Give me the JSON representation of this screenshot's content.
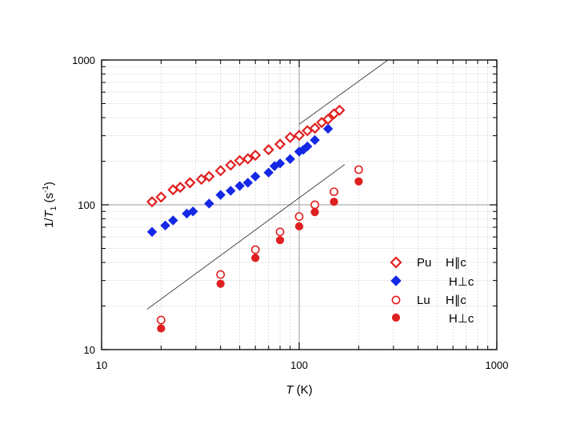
{
  "chart_data": {
    "type": "scatter",
    "xscale": "log",
    "yscale": "log",
    "xlim": [
      10,
      1000
    ],
    "ylim": [
      10,
      1000
    ],
    "x_ticks": [
      "10",
      "100",
      "1000"
    ],
    "y_ticks": [
      "10",
      "100",
      "1000"
    ],
    "xlabel": {
      "italic": "T",
      "rest": " (K)"
    },
    "ylabel": {
      "prefix": "1/",
      "italic": "T",
      "sub": "1",
      "rest": " (s",
      "sup": "-1",
      "end": ")"
    },
    "grid": true,
    "legend_position": "bottom-right",
    "series": [
      {
        "name": "Pu H∥c",
        "legend": {
          "compound": "Pu",
          "field": "H∥c"
        },
        "marker": "open-diamond",
        "color": "#e02020",
        "x": [
          18,
          20,
          23,
          25,
          28,
          32,
          35,
          40,
          45,
          50,
          55,
          60,
          70,
          80,
          90,
          100,
          110,
          120,
          130,
          140,
          150,
          160
        ],
        "y": [
          105,
          113,
          127,
          132,
          142,
          150,
          157,
          172,
          188,
          202,
          208,
          220,
          240,
          262,
          292,
          302,
          325,
          338,
          370,
          390,
          425,
          450
        ]
      },
      {
        "name": "Pu H⊥c",
        "legend": {
          "compound": "",
          "field": "H⊥c"
        },
        "marker": "filled-diamond",
        "color": "#1428e6",
        "x": [
          18,
          21,
          23,
          27,
          29,
          35,
          40,
          45,
          50,
          55,
          60,
          70,
          75,
          80,
          90,
          100,
          105,
          110,
          120,
          140
        ],
        "y": [
          65,
          72,
          78,
          87,
          90,
          102,
          117,
          125,
          135,
          142,
          157,
          167,
          185,
          193,
          207,
          233,
          240,
          253,
          280,
          335
        ]
      },
      {
        "name": "Lu H∥c",
        "legend": {
          "compound": "Lu",
          "field": "H∥c"
        },
        "marker": "open-circle",
        "color": "#e02020",
        "x": [
          20,
          40,
          60,
          80,
          100,
          120,
          150,
          200
        ],
        "y": [
          16,
          33,
          49,
          65,
          83,
          100,
          123,
          175
        ]
      },
      {
        "name": "Lu H⊥c",
        "legend": {
          "compound": "",
          "field": "H⊥c"
        },
        "marker": "filled-circle",
        "color": "#e02020",
        "x": [
          20,
          40,
          60,
          80,
          100,
          120,
          150,
          200
        ],
        "y": [
          14,
          28.5,
          43,
          57,
          71,
          89,
          105,
          145
        ]
      }
    ],
    "reference_lines": [
      {
        "name": "T-linear guide (Lu)",
        "x": [
          17,
          170
        ],
        "y": [
          19,
          190
        ]
      },
      {
        "name": "T-linear guide (Pu)",
        "x": [
          100,
          310
        ],
        "y": [
          360,
          1100
        ]
      }
    ]
  }
}
